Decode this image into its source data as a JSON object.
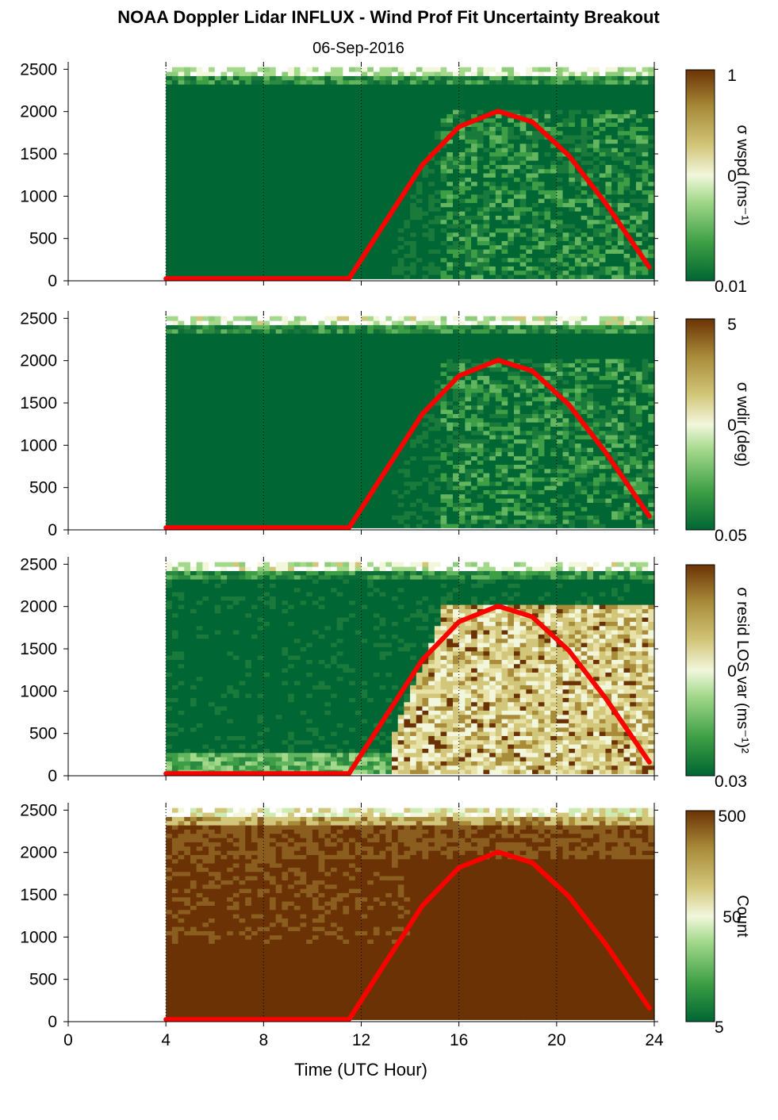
{
  "title": "NOAA Doppler Lidar INFLUX - Wind Prof Fit Uncertainty Breakout",
  "subtitle": "06-Sep-2016",
  "xlabel": "Time (UTC Hour)",
  "colors": {
    "dark_green": "#006633",
    "mid_green": "#3d9e45",
    "light_green": "#a4d98c",
    "pale": "#f2f7dc",
    "khaki": "#d2c67a",
    "olive": "#a98c3a",
    "dark_brown": "#6b3305",
    "sun_line": "#ff0000"
  },
  "chart_data": [
    {
      "type": "heatmap",
      "panel": "wspd",
      "colorbar_label": "σ wspd (ms⁻¹)",
      "colorbar_ticks": [
        "1",
        "0",
        "0.01"
      ],
      "x_ticks": [
        "0",
        "4",
        "8",
        "12",
        "16",
        "20",
        "24"
      ],
      "y_ticks": [
        "0",
        "500",
        "1000",
        "1500",
        "2000",
        "2500"
      ],
      "xlim": [
        0,
        24
      ],
      "ylim": [
        0,
        2550
      ],
      "data_start_hour": 4.0,
      "data_end_hour": 23.8,
      "sun_elevation_curve": {
        "x": [
          4,
          11.5,
          13,
          14.5,
          16,
          17.6,
          19,
          20.5,
          22,
          23.8
        ],
        "y": [
          25,
          25,
          700,
          1370,
          1820,
          2005,
          1880,
          1480,
          920,
          160
        ]
      }
    },
    {
      "type": "heatmap",
      "panel": "wdir",
      "colorbar_label": "σ wdir (deg)",
      "colorbar_ticks": [
        "5",
        "0",
        "0.05"
      ],
      "x_ticks": [
        "0",
        "4",
        "8",
        "12",
        "16",
        "20",
        "24"
      ],
      "y_ticks": [
        "0",
        "500",
        "1000",
        "1500",
        "2000",
        "2500"
      ],
      "xlim": [
        0,
        24
      ],
      "ylim": [
        0,
        2550
      ],
      "data_start_hour": 4.0,
      "data_end_hour": 23.8,
      "sun_elevation_curve": {
        "x": [
          4,
          11.5,
          13,
          14.5,
          16,
          17.6,
          19,
          20.5,
          22,
          23.8
        ],
        "y": [
          25,
          25,
          700,
          1370,
          1820,
          2005,
          1880,
          1480,
          920,
          160
        ]
      }
    },
    {
      "type": "heatmap",
      "panel": "resid",
      "colorbar_label": "σ resid LOS var (ms⁻¹)²",
      "colorbar_ticks": [
        "",
        "0",
        "0.03"
      ],
      "x_ticks": [
        "0",
        "4",
        "8",
        "12",
        "16",
        "20",
        "24"
      ],
      "y_ticks": [
        "0",
        "500",
        "1000",
        "1500",
        "2000",
        "2500"
      ],
      "xlim": [
        0,
        24
      ],
      "ylim": [
        0,
        2550
      ],
      "data_start_hour": 4.0,
      "data_end_hour": 23.8,
      "sun_elevation_curve": {
        "x": [
          4,
          11.5,
          13,
          14.5,
          16,
          17.6,
          19,
          20.5,
          22,
          23.8
        ],
        "y": [
          25,
          25,
          700,
          1370,
          1820,
          2005,
          1880,
          1480,
          920,
          160
        ]
      }
    },
    {
      "type": "heatmap",
      "panel": "count",
      "colorbar_label": "Count",
      "colorbar_ticks": [
        "500",
        "50",
        "5"
      ],
      "x_ticks": [
        "0",
        "4",
        "8",
        "12",
        "16",
        "20",
        "24"
      ],
      "y_ticks": [
        "0",
        "500",
        "1000",
        "1500",
        "2000",
        "2500"
      ],
      "xlim": [
        0,
        24
      ],
      "ylim": [
        0,
        2550
      ],
      "data_start_hour": 4.0,
      "data_end_hour": 23.8,
      "sun_elevation_curve": {
        "x": [
          4,
          11.5,
          13,
          14.5,
          16,
          17.6,
          19,
          20.5,
          22,
          23.8
        ],
        "y": [
          25,
          25,
          700,
          1370,
          1820,
          2005,
          1880,
          1480,
          920,
          160
        ]
      }
    }
  ]
}
